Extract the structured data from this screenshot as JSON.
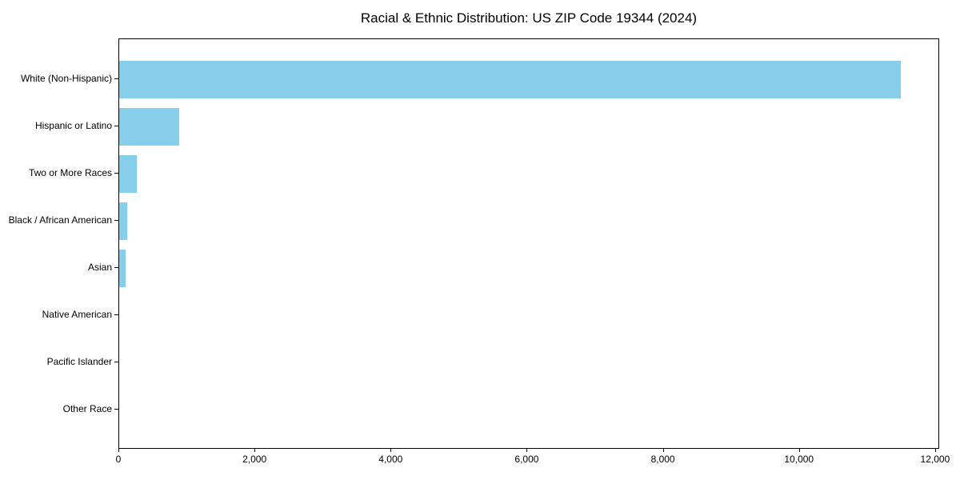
{
  "title": "Racial & Ethnic Distribution: US ZIP Code 19344 (2024)",
  "chart_data": {
    "type": "bar",
    "orientation": "horizontal",
    "title": "Racial & Ethnic Distribution: US ZIP Code 19344 (2024)",
    "xlabel": "",
    "ylabel": "",
    "categories": [
      "White (Non-Hispanic)",
      "Hispanic or Latino",
      "Two or More Races",
      "Black / African American",
      "Asian",
      "Native American",
      "Pacific Islander",
      "Other Race"
    ],
    "values": [
      11480,
      880,
      260,
      120,
      90,
      0,
      0,
      0
    ],
    "xlim": [
      0,
      12060
    ],
    "x_ticks": [
      0,
      2000,
      4000,
      6000,
      8000,
      10000,
      12000
    ],
    "x_tick_labels": [
      "0",
      "2,000",
      "4,000",
      "6,000",
      "8,000",
      "10,000",
      "12,000"
    ],
    "grid": false,
    "legend": null,
    "bar_color": "#87CEEB",
    "axis_color": "#000000",
    "background_color": "#ffffff",
    "text_color": "#000000"
  }
}
